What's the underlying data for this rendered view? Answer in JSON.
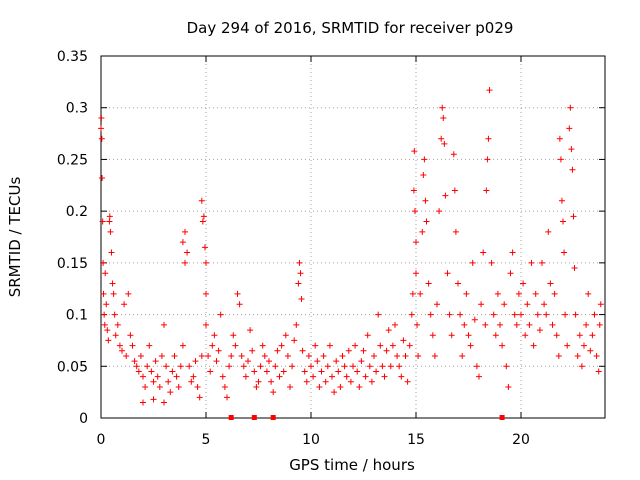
{
  "chart_data": {
    "type": "scatter",
    "title": "Day 294 of 2016, SRMTID for receiver p029",
    "xlabel": "GPS time / hours",
    "ylabel": "SRMTID / TECUs",
    "xlim": [
      0,
      24
    ],
    "ylim": [
      0,
      0.35
    ],
    "x_ticks": [
      0,
      5,
      10,
      15,
      20
    ],
    "x_tick_labels": [
      "0",
      "5",
      "10",
      "15",
      "20"
    ],
    "y_ticks": [
      0,
      0.05,
      0.1,
      0.15,
      0.2,
      0.25,
      0.3,
      0.35
    ],
    "y_tick_labels": [
      "0",
      "0.05",
      "0.1",
      "0.15",
      "0.2",
      "0.25",
      "0.3",
      "0.35"
    ],
    "grid": true,
    "marker": "+",
    "color": "#ff0000",
    "series": [
      {
        "name": "SRMTID",
        "points": [
          [
            0.0,
            0.28
          ],
          [
            0.02,
            0.29
          ],
          [
            0.04,
            0.27
          ],
          [
            0.05,
            0.232
          ],
          [
            0.08,
            0.19
          ],
          [
            0.1,
            0.15
          ],
          [
            0.12,
            0.12
          ],
          [
            0.15,
            0.1
          ],
          [
            0.18,
            0.09
          ],
          [
            0.2,
            0.14
          ],
          [
            0.25,
            0.11
          ],
          [
            0.3,
            0.085
          ],
          [
            0.35,
            0.075
          ],
          [
            0.4,
            0.19
          ],
          [
            0.42,
            0.195
          ],
          [
            0.45,
            0.18
          ],
          [
            0.5,
            0.16
          ],
          [
            0.55,
            0.13
          ],
          [
            0.6,
            0.12
          ],
          [
            0.65,
            0.1
          ],
          [
            0.7,
            0.08
          ],
          [
            0.8,
            0.09
          ],
          [
            0.9,
            0.07
          ],
          [
            1.0,
            0.065
          ],
          [
            1.1,
            0.11
          ],
          [
            1.2,
            0.06
          ],
          [
            1.3,
            0.12
          ],
          [
            1.4,
            0.08
          ],
          [
            1.5,
            0.07
          ],
          [
            1.6,
            0.055
          ],
          [
            1.7,
            0.05
          ],
          [
            1.8,
            0.045
          ],
          [
            1.9,
            0.06
          ],
          [
            2.0,
            0.04
          ],
          [
            2.0,
            0.015
          ],
          [
            2.1,
            0.03
          ],
          [
            2.2,
            0.05
          ],
          [
            2.3,
            0.07
          ],
          [
            2.4,
            0.045
          ],
          [
            2.5,
            0.035
          ],
          [
            2.5,
            0.018
          ],
          [
            2.6,
            0.055
          ],
          [
            2.7,
            0.04
          ],
          [
            2.8,
            0.03
          ],
          [
            2.9,
            0.06
          ],
          [
            3.0,
            0.09
          ],
          [
            3.0,
            0.015
          ],
          [
            3.1,
            0.05
          ],
          [
            3.2,
            0.035
          ],
          [
            3.3,
            0.025
          ],
          [
            3.4,
            0.045
          ],
          [
            3.5,
            0.06
          ],
          [
            3.6,
            0.04
          ],
          [
            3.7,
            0.03
          ],
          [
            3.8,
            0.05
          ],
          [
            3.9,
            0.07
          ],
          [
            3.9,
            0.17
          ],
          [
            4.0,
            0.18
          ],
          [
            4.0,
            0.15
          ],
          [
            4.1,
            0.16
          ],
          [
            4.2,
            0.05
          ],
          [
            4.3,
            0.035
          ],
          [
            4.4,
            0.04
          ],
          [
            4.5,
            0.055
          ],
          [
            4.6,
            0.03
          ],
          [
            4.7,
            0.02
          ],
          [
            4.8,
            0.06
          ],
          [
            4.8,
            0.21
          ],
          [
            4.85,
            0.19
          ],
          [
            4.9,
            0.195
          ],
          [
            4.95,
            0.165
          ],
          [
            5.0,
            0.15
          ],
          [
            5.0,
            0.12
          ],
          [
            5.0,
            0.09
          ],
          [
            5.1,
            0.06
          ],
          [
            5.2,
            0.045
          ],
          [
            5.3,
            0.07
          ],
          [
            5.4,
            0.08
          ],
          [
            5.5,
            0.055
          ],
          [
            5.6,
            0.065
          ],
          [
            5.7,
            0.1
          ],
          [
            5.8,
            0.04
          ],
          [
            5.9,
            0.03
          ],
          [
            6.0,
            0.02
          ],
          [
            6.1,
            0.05
          ],
          [
            6.2,
            0.06
          ],
          [
            6.3,
            0.08
          ],
          [
            6.4,
            0.07
          ],
          [
            6.5,
            0.12
          ],
          [
            6.6,
            0.11
          ],
          [
            6.7,
            0.06
          ],
          [
            6.8,
            0.05
          ],
          [
            6.9,
            0.04
          ],
          [
            7.0,
            0.055
          ],
          [
            7.1,
            0.085
          ],
          [
            7.2,
            0.065
          ],
          [
            7.3,
            0.045
          ],
          [
            7.4,
            0.03
          ],
          [
            7.5,
            0.035
          ],
          [
            7.6,
            0.05
          ],
          [
            7.7,
            0.07
          ],
          [
            7.8,
            0.06
          ],
          [
            7.9,
            0.045
          ],
          [
            8.0,
            0.055
          ],
          [
            8.1,
            0.035
          ],
          [
            8.2,
            0.025
          ],
          [
            8.3,
            0.05
          ],
          [
            8.4,
            0.065
          ],
          [
            8.5,
            0.04
          ],
          [
            8.6,
            0.07
          ],
          [
            8.7,
            0.045
          ],
          [
            8.8,
            0.08
          ],
          [
            8.9,
            0.06
          ],
          [
            9.0,
            0.03
          ],
          [
            9.1,
            0.05
          ],
          [
            9.2,
            0.075
          ],
          [
            9.3,
            0.09
          ],
          [
            9.4,
            0.13
          ],
          [
            9.45,
            0.15
          ],
          [
            9.5,
            0.14
          ],
          [
            9.55,
            0.115
          ],
          [
            9.6,
            0.065
          ],
          [
            9.7,
            0.045
          ],
          [
            9.8,
            0.035
          ],
          [
            9.9,
            0.06
          ],
          [
            10.0,
            0.05
          ],
          [
            10.1,
            0.04
          ],
          [
            10.2,
            0.07
          ],
          [
            10.3,
            0.055
          ],
          [
            10.4,
            0.03
          ],
          [
            10.5,
            0.045
          ],
          [
            10.6,
            0.06
          ],
          [
            10.7,
            0.035
          ],
          [
            10.8,
            0.05
          ],
          [
            10.9,
            0.07
          ],
          [
            11.0,
            0.04
          ],
          [
            11.1,
            0.025
          ],
          [
            11.2,
            0.055
          ],
          [
            11.3,
            0.045
          ],
          [
            11.4,
            0.03
          ],
          [
            11.5,
            0.06
          ],
          [
            11.6,
            0.05
          ],
          [
            11.7,
            0.04
          ],
          [
            11.8,
            0.065
          ],
          [
            11.9,
            0.035
          ],
          [
            12.0,
            0.05
          ],
          [
            12.1,
            0.07
          ],
          [
            12.2,
            0.045
          ],
          [
            12.3,
            0.03
          ],
          [
            12.4,
            0.055
          ],
          [
            12.5,
            0.065
          ],
          [
            12.6,
            0.04
          ],
          [
            12.7,
            0.08
          ],
          [
            12.8,
            0.05
          ],
          [
            12.9,
            0.035
          ],
          [
            13.0,
            0.06
          ],
          [
            13.1,
            0.045
          ],
          [
            13.2,
            0.1
          ],
          [
            13.3,
            0.07
          ],
          [
            13.4,
            0.05
          ],
          [
            13.5,
            0.04
          ],
          [
            13.6,
            0.065
          ],
          [
            13.7,
            0.085
          ],
          [
            13.8,
            0.05
          ],
          [
            13.9,
            0.07
          ],
          [
            14.0,
            0.09
          ],
          [
            14.1,
            0.06
          ],
          [
            14.2,
            0.05
          ],
          [
            14.3,
            0.04
          ],
          [
            14.4,
            0.075
          ],
          [
            14.5,
            0.06
          ],
          [
            14.6,
            0.035
          ],
          [
            14.7,
            0.07
          ],
          [
            14.8,
            0.1
          ],
          [
            14.85,
            0.12
          ],
          [
            14.9,
            0.22
          ],
          [
            14.92,
            0.258
          ],
          [
            14.95,
            0.2
          ],
          [
            15.0,
            0.17
          ],
          [
            15.0,
            0.14
          ],
          [
            15.05,
            0.09
          ],
          [
            15.1,
            0.06
          ],
          [
            15.2,
            0.12
          ],
          [
            15.3,
            0.18
          ],
          [
            15.35,
            0.235
          ],
          [
            15.4,
            0.25
          ],
          [
            15.45,
            0.21
          ],
          [
            15.5,
            0.19
          ],
          [
            15.6,
            0.13
          ],
          [
            15.7,
            0.1
          ],
          [
            15.8,
            0.08
          ],
          [
            15.9,
            0.06
          ],
          [
            16.0,
            0.11
          ],
          [
            16.1,
            0.2
          ],
          [
            16.2,
            0.27
          ],
          [
            16.25,
            0.3
          ],
          [
            16.3,
            0.29
          ],
          [
            16.35,
            0.265
          ],
          [
            16.4,
            0.215
          ],
          [
            16.5,
            0.14
          ],
          [
            16.6,
            0.1
          ],
          [
            16.7,
            0.08
          ],
          [
            16.8,
            0.255
          ],
          [
            16.85,
            0.22
          ],
          [
            16.9,
            0.18
          ],
          [
            17.0,
            0.13
          ],
          [
            17.1,
            0.1
          ],
          [
            17.2,
            0.06
          ],
          [
            17.3,
            0.09
          ],
          [
            17.4,
            0.12
          ],
          [
            17.5,
            0.08
          ],
          [
            17.6,
            0.07
          ],
          [
            17.7,
            0.15
          ],
          [
            17.8,
            0.095
          ],
          [
            17.9,
            0.05
          ],
          [
            18.0,
            0.04
          ],
          [
            18.1,
            0.11
          ],
          [
            18.2,
            0.16
          ],
          [
            18.3,
            0.09
          ],
          [
            18.35,
            0.22
          ],
          [
            18.4,
            0.25
          ],
          [
            18.45,
            0.27
          ],
          [
            18.5,
            0.317
          ],
          [
            18.6,
            0.15
          ],
          [
            18.7,
            0.1
          ],
          [
            18.8,
            0.08
          ],
          [
            18.9,
            0.12
          ],
          [
            19.0,
            0.09
          ],
          [
            19.1,
            0.07
          ],
          [
            19.2,
            0.11
          ],
          [
            19.3,
            0.05
          ],
          [
            19.4,
            0.03
          ],
          [
            19.5,
            0.14
          ],
          [
            19.6,
            0.16
          ],
          [
            19.7,
            0.1
          ],
          [
            19.8,
            0.09
          ],
          [
            19.9,
            0.12
          ],
          [
            20.0,
            0.1
          ],
          [
            20.1,
            0.13
          ],
          [
            20.2,
            0.08
          ],
          [
            20.3,
            0.11
          ],
          [
            20.4,
            0.09
          ],
          [
            20.5,
            0.15
          ],
          [
            20.6,
            0.07
          ],
          [
            20.7,
            0.12
          ],
          [
            20.8,
            0.1
          ],
          [
            20.9,
            0.085
          ],
          [
            21.0,
            0.15
          ],
          [
            21.1,
            0.11
          ],
          [
            21.2,
            0.1
          ],
          [
            21.3,
            0.18
          ],
          [
            21.4,
            0.13
          ],
          [
            21.5,
            0.09
          ],
          [
            21.6,
            0.12
          ],
          [
            21.7,
            0.08
          ],
          [
            21.8,
            0.06
          ],
          [
            21.85,
            0.27
          ],
          [
            21.9,
            0.25
          ],
          [
            21.95,
            0.21
          ],
          [
            22.0,
            0.19
          ],
          [
            22.05,
            0.16
          ],
          [
            22.1,
            0.1
          ],
          [
            22.2,
            0.07
          ],
          [
            22.3,
            0.28
          ],
          [
            22.35,
            0.3
          ],
          [
            22.4,
            0.26
          ],
          [
            22.45,
            0.24
          ],
          [
            22.5,
            0.195
          ],
          [
            22.55,
            0.145
          ],
          [
            22.6,
            0.1
          ],
          [
            22.7,
            0.06
          ],
          [
            22.8,
            0.08
          ],
          [
            22.9,
            0.05
          ],
          [
            23.0,
            0.07
          ],
          [
            23.1,
            0.09
          ],
          [
            23.2,
            0.12
          ],
          [
            23.3,
            0.065
          ],
          [
            23.4,
            0.08
          ],
          [
            23.5,
            0.1
          ],
          [
            23.6,
            0.06
          ],
          [
            23.7,
            0.045
          ],
          [
            23.75,
            0.09
          ],
          [
            23.8,
            0.11
          ]
        ]
      }
    ],
    "zero_markers_x": [
      6.2,
      7.3,
      8.2,
      19.1
    ]
  }
}
